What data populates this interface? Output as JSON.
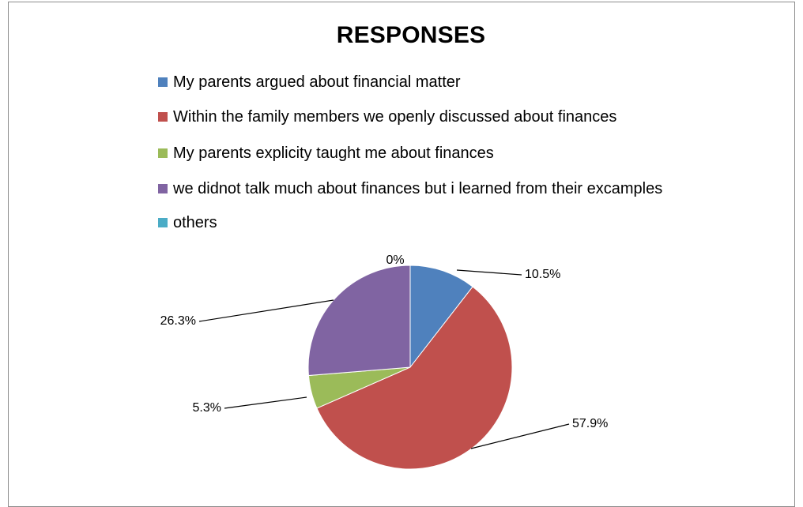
{
  "chart_data": {
    "type": "pie",
    "title": "RESPONSES",
    "legend_position": "top",
    "slices": [
      {
        "label": "My parents argued about financial matter",
        "value": 10.5,
        "display": "10.5%",
        "color": "#4f81bd"
      },
      {
        "label": "Within the family members we openly discussed about finances",
        "value": 57.9,
        "display": "57.9%",
        "color": "#c0504d"
      },
      {
        "label": "My parents explicity taught me about finances",
        "value": 5.3,
        "display": "5.3%",
        "color": "#9bbb59"
      },
      {
        "label": "we didnot talk much about finances but i learned from their excamples",
        "value": 26.3,
        "display": "26.3%",
        "color": "#8064a2"
      },
      {
        "label": "others",
        "value": 0,
        "display": "0%",
        "color": "#4bacc6"
      }
    ]
  }
}
